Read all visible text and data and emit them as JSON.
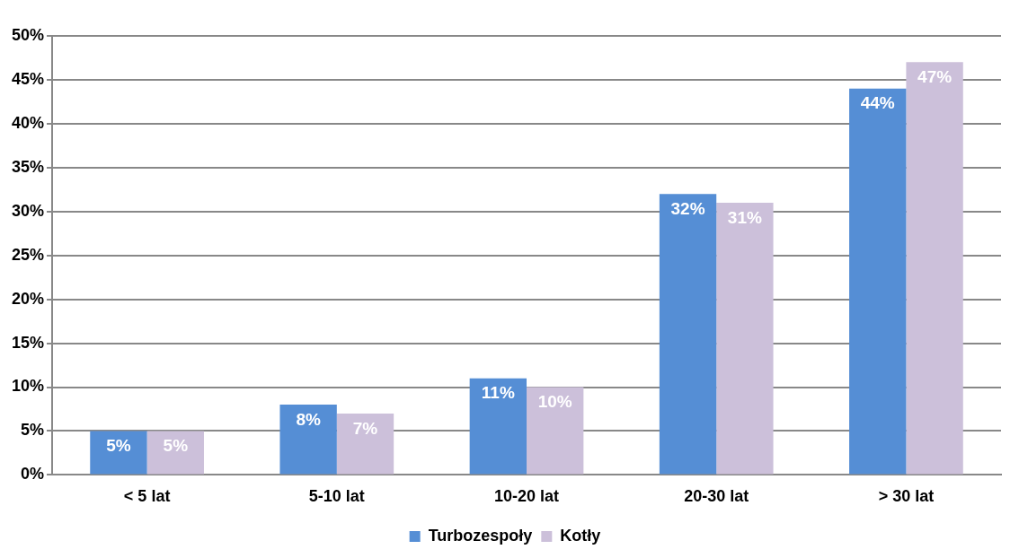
{
  "chart_data": {
    "type": "bar",
    "categories": [
      "< 5 lat",
      "5-10 lat",
      "10-20 lat",
      "20-30 lat",
      "> 30 lat"
    ],
    "series": [
      {
        "name": "Turbozespoły",
        "color": "#558ed5",
        "values": [
          5,
          8,
          11,
          32,
          44
        ],
        "value_labels": [
          "5%",
          "8%",
          "11%",
          "32%",
          "44%"
        ]
      },
      {
        "name": "Kotły",
        "color": "#ccc0da",
        "values": [
          5,
          7,
          10,
          31,
          47
        ],
        "value_labels": [
          "5%",
          "7%",
          "10%",
          "31%",
          "47%"
        ]
      }
    ],
    "ylim": [
      0,
      50
    ],
    "yticks": [
      {
        "value": 0,
        "label": "0%"
      },
      {
        "value": 5,
        "label": "5%"
      },
      {
        "value": 10,
        "label": "10%"
      },
      {
        "value": 15,
        "label": "15%"
      },
      {
        "value": 20,
        "label": "20%"
      },
      {
        "value": 25,
        "label": "25%"
      },
      {
        "value": 30,
        "label": "30%"
      },
      {
        "value": 35,
        "label": "35%"
      },
      {
        "value": 40,
        "label": "40%"
      },
      {
        "value": 45,
        "label": "45%"
      },
      {
        "value": 50,
        "label": "50%"
      }
    ],
    "grid": "y",
    "legend": "bottom"
  }
}
